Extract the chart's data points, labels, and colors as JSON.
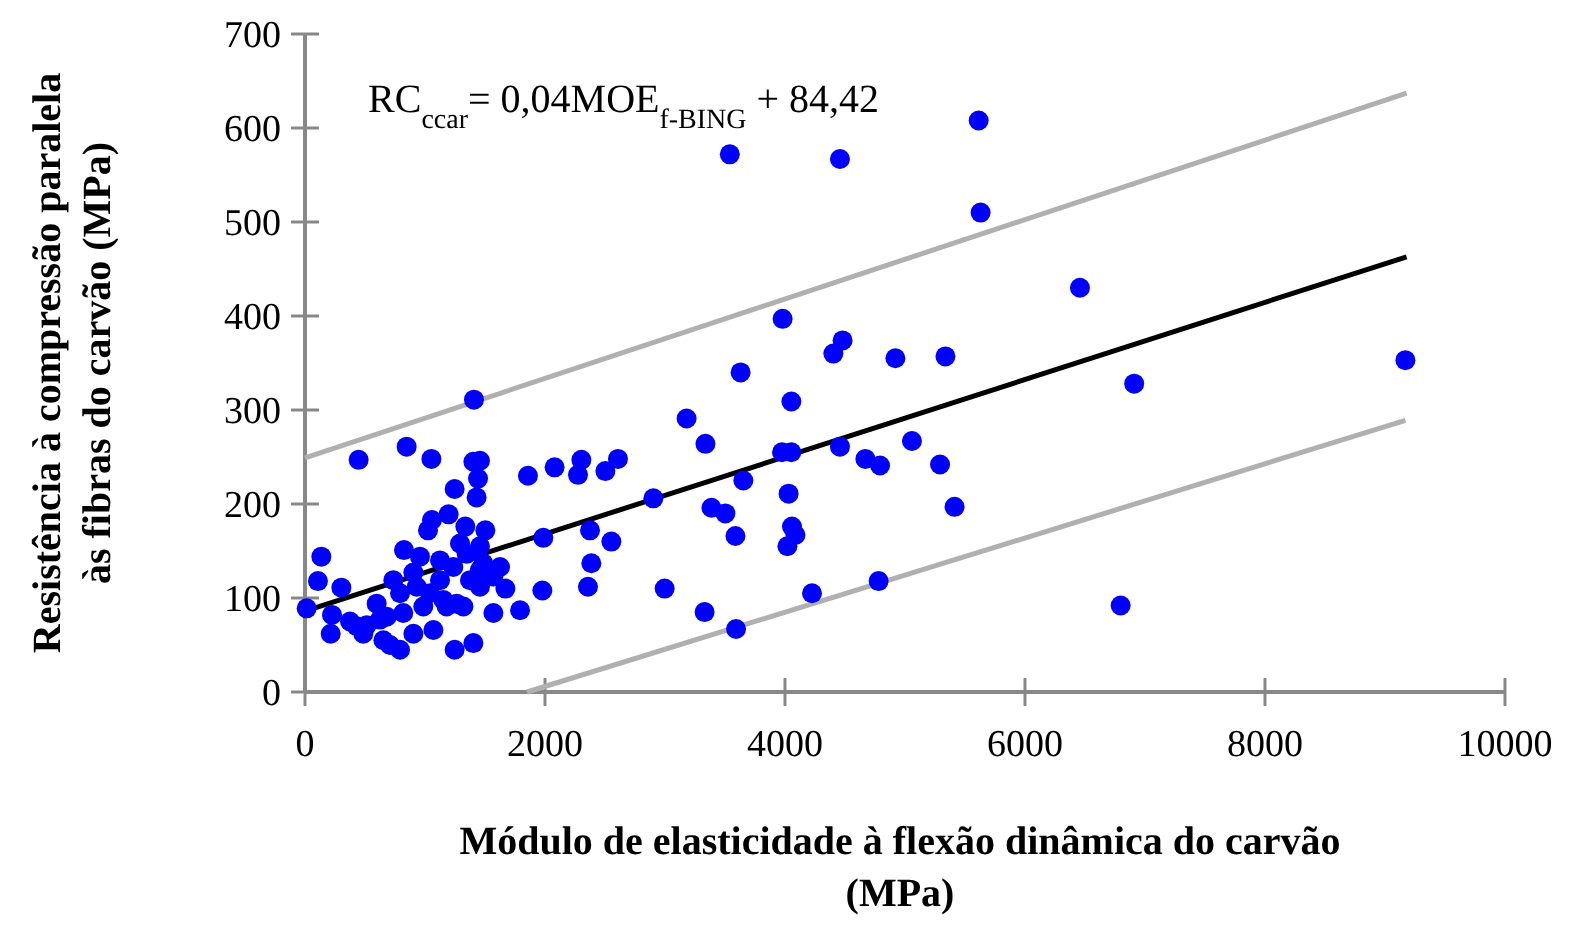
{
  "chart_data": {
    "type": "scatter",
    "xlabel": "Módulo de elasticidade à flexão dinâmica do carvão\n(MPa)",
    "ylabel": "Resistência à compressão paralela\nàs fibras do carvão  (MPa)",
    "annotations": [
      "RC$_{ccar}$= 0,04MOE$_{f-BING}$ + 84,42"
    ],
    "xlim": [
      0,
      10000
    ],
    "ylim": [
      0,
      700
    ],
    "xticks": [
      0,
      2000,
      4000,
      6000,
      8000,
      10000
    ],
    "yticks": [
      0,
      100,
      200,
      300,
      400,
      500,
      600,
      700
    ],
    "grid": false,
    "series": [
      {
        "marker": "circle",
        "color": "#0000ff",
        "x": [
          3540,
          4458,
          5614,
          5630,
          6458,
          3980,
          4480,
          4403,
          4920,
          5337,
          3630,
          4053,
          3180,
          3337,
          3975,
          4053,
          4458,
          5058,
          4670,
          4792,
          5292,
          2608,
          2503,
          2903,
          3653,
          4030,
          3387,
          3503,
          5413,
          3587,
          4058,
          4087,
          4020,
          2553,
          2997,
          3330,
          3592,
          4225,
          4780,
          6910,
          9170,
          6797,
          1408,
          447,
          847,
          1053,
          1403,
          1458,
          1442,
          1247,
          1430,
          1858,
          2080,
          2275,
          2303,
          14,
          136,
          108,
          303,
          225,
          214,
          375,
          486,
          514,
          708,
          792,
          903,
          825,
          1058,
          1197,
          1025,
          1125,
          1336,
          1503,
          1458,
          1292,
          958,
          736,
          597,
          681,
          819,
          931,
          1042,
          1153,
          1264,
          1375,
          1458,
          1570,
          1670,
          1570,
          1792,
          1978,
          1986,
          2375,
          2358,
          2386,
          1247,
          1403,
          1070,
          1180,
          1320,
          986,
          653,
          430,
          1125,
          1236,
          1347,
          1486,
          903,
          792,
          625,
          1458,
          1625
        ],
        "values": [
          572,
          567,
          608,
          510,
          430,
          397,
          374,
          360,
          355,
          357,
          340,
          309,
          291,
          264,
          255,
          255,
          261,
          267,
          248,
          241,
          242,
          248,
          235,
          206,
          225,
          211,
          196,
          190,
          197,
          166,
          176,
          167,
          155,
          160,
          110,
          85,
          67,
          105,
          118,
          328,
          353,
          92,
          311,
          247,
          261,
          248,
          245,
          246,
          227,
          216,
          207,
          230,
          239,
          231,
          247,
          89,
          144,
          118,
          111,
          82,
          62,
          75,
          62,
          71,
          50,
          45,
          62,
          151,
          183,
          189,
          172,
          140,
          176,
          172,
          155,
          158,
          144,
          119,
          94,
          80,
          84,
          112,
          105,
          98,
          94,
          119,
          130,
          123,
          110,
          84,
          87,
          108,
          164,
          172,
          112,
          137,
          45,
          52,
          66,
          91,
          91,
          91,
          55,
          70,
          119,
          133,
          147,
          137,
          127,
          105,
          77,
          112,
          133
        ]
      },
      {
        "type": "line",
        "color": "#000000",
        "x": [
          0,
          9180
        ],
        "values": [
          86,
          463
        ]
      },
      {
        "type": "line",
        "color": "#b0b0b0",
        "x": [
          0,
          9180
        ],
        "values": [
          249,
          637
        ]
      },
      {
        "type": "line",
        "color": "#b0b0b0",
        "x": [
          1850,
          9170
        ],
        "values": [
          0,
          289
        ]
      }
    ]
  }
}
